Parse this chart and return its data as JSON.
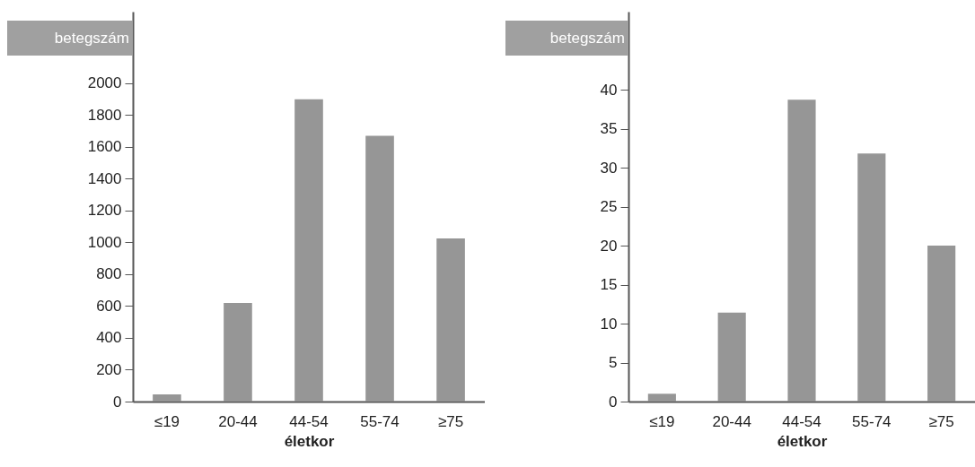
{
  "chart_data": [
    {
      "type": "bar",
      "xlabel": "életkor",
      "ylabel": "betegszám",
      "categories": [
        "≤19",
        "20-44",
        "44-54",
        "55-74",
        "≥75"
      ],
      "values": [
        45,
        620,
        1900,
        1670,
        1025
      ],
      "color": "#969696",
      "ylim": [
        0,
        2450
      ],
      "yticks": [
        0,
        200,
        400,
        600,
        800,
        1000,
        1200,
        1400,
        1600,
        1800,
        2000
      ]
    },
    {
      "type": "bar",
      "xlabel": "életkor",
      "ylabel": "betegszám",
      "categories": [
        "≤19",
        "20-44",
        "44-54",
        "55-74",
        "≥75"
      ],
      "values": [
        1,
        11.4,
        38.7,
        31.8,
        20
      ],
      "color": "#969696",
      "ylim": [
        0,
        50
      ],
      "yticks": [
        0,
        5,
        10,
        15,
        20,
        25,
        30,
        35,
        40
      ]
    }
  ]
}
